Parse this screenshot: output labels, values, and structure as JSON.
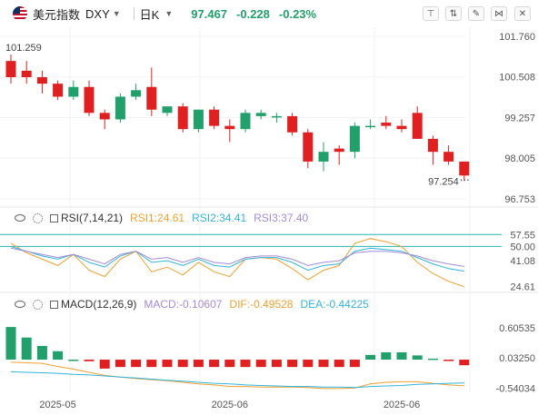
{
  "header": {
    "name": "美元指数",
    "symbol": "DXY",
    "timeframe": "日K",
    "price": "97.467",
    "change": "-0.228",
    "change_pct": "-0.23%",
    "tools": [
      "pin-icon",
      "indicator-icon",
      "draw-icon",
      "compare-icon",
      "expand-icon",
      "close-icon"
    ]
  },
  "colors": {
    "up": "#22a06b",
    "down": "#e02020",
    "rsi1": "#f0a030",
    "rsi2": "#32b4dc",
    "rsi3": "#a38bd8",
    "ref": "#26b5b5"
  },
  "rsi_legend": {
    "name": "RSI(7,14,21)",
    "rsi1": "RSI1:24.61",
    "rsi2": "RSI2:34.41",
    "rsi3": "RSI3:37.40"
  },
  "macd_legend": {
    "name": "MACD(12,26,9)",
    "macd": "MACD:-0.10607",
    "dif": "DIF:-0.49528",
    "dea": "DEA:-0.44225"
  },
  "chart_data": {
    "type": "candlestick",
    "y_ticks": [
      "101.760",
      "100.508",
      "99.257",
      "98.005",
      "96.753"
    ],
    "y_tick_values": [
      101.76,
      100.508,
      99.257,
      98.005,
      96.753
    ],
    "ylim": [
      96.75,
      101.76
    ],
    "x_labels": [
      "2025-05",
      "2025-06",
      "2025-06"
    ],
    "x_label_index": [
      3,
      14,
      25
    ],
    "high_label": "101.259",
    "high_index": 0,
    "low_label": "97.254",
    "low_index": 29,
    "ohlc": [
      [
        101.0,
        101.2,
        100.3,
        100.5
      ],
      [
        100.7,
        101.0,
        100.3,
        100.5
      ],
      [
        100.5,
        100.7,
        100.0,
        100.3
      ],
      [
        100.3,
        100.4,
        99.8,
        99.9
      ],
      [
        99.9,
        100.4,
        99.8,
        100.2
      ],
      [
        100.2,
        100.4,
        99.3,
        99.4
      ],
      [
        99.4,
        99.5,
        98.9,
        99.2
      ],
      [
        99.2,
        100.0,
        99.1,
        99.9
      ],
      [
        99.9,
        100.3,
        99.8,
        100.1
      ],
      [
        100.2,
        100.8,
        99.3,
        99.5
      ],
      [
        99.4,
        99.6,
        99.3,
        99.6
      ],
      [
        99.6,
        99.7,
        98.8,
        98.9
      ],
      [
        98.9,
        99.5,
        98.8,
        99.5
      ],
      [
        99.5,
        99.6,
        98.9,
        99.0
      ],
      [
        99.0,
        99.2,
        98.5,
        98.9
      ],
      [
        98.9,
        99.5,
        98.8,
        99.4
      ],
      [
        99.3,
        99.5,
        99.2,
        99.4
      ],
      [
        99.3,
        99.4,
        99.1,
        99.3
      ],
      [
        99.3,
        99.4,
        98.7,
        98.8
      ],
      [
        98.8,
        98.9,
        97.7,
        97.9
      ],
      [
        97.9,
        98.5,
        97.6,
        98.2
      ],
      [
        98.3,
        98.4,
        97.8,
        98.2
      ],
      [
        98.2,
        99.1,
        98.0,
        99.0
      ],
      [
        99.0,
        99.2,
        98.9,
        99.0
      ],
      [
        99.1,
        99.3,
        98.9,
        99.0
      ],
      [
        99.0,
        99.2,
        98.8,
        98.9
      ],
      [
        99.4,
        99.6,
        98.6,
        98.6
      ],
      [
        98.6,
        98.7,
        97.8,
        98.2
      ],
      [
        98.2,
        98.4,
        97.8,
        97.9
      ],
      [
        97.9,
        97.9,
        97.3,
        97.47
      ]
    ],
    "rsi": {
      "ref_lines": [
        57.55,
        50.0
      ],
      "y_ticks": [
        "57.55",
        "50.00",
        "41.08",
        "24.61"
      ],
      "y_tick_values": [
        57.55,
        50.0,
        41.08,
        24.61
      ],
      "ylim": [
        21,
        60
      ],
      "series": [
        {
          "name": "RSI1",
          "values": [
            52,
            46,
            42,
            38,
            45,
            35,
            31,
            42,
            47,
            34,
            37,
            32,
            40,
            34,
            31,
            42,
            43,
            42,
            36,
            29,
            35,
            38,
            52,
            55,
            53,
            50,
            40,
            33,
            28,
            24.61
          ]
        },
        {
          "name": "RSI2",
          "values": [
            50,
            47,
            44,
            42,
            45,
            40,
            37,
            44,
            47,
            40,
            41,
            38,
            42,
            38,
            37,
            42,
            43,
            43,
            40,
            35,
            38,
            39,
            47,
            49,
            48,
            47,
            43,
            39,
            36,
            34.41
          ]
        },
        {
          "name": "RSI3",
          "values": [
            49,
            47,
            45,
            43,
            45,
            42,
            39,
            45,
            47,
            42,
            43,
            40,
            43,
            40,
            39,
            43,
            44,
            44,
            42,
            38,
            40,
            41,
            46,
            47,
            47,
            46,
            44,
            41,
            39,
            37.4
          ]
        }
      ]
    },
    "macd": {
      "y_ticks": [
        "0.60535",
        "0.03250",
        "-0.54034"
      ],
      "y_tick_values": [
        0.60535,
        0.0325,
        -0.54034
      ],
      "ylim": [
        -0.62,
        0.88
      ],
      "hist": [
        0.62,
        0.42,
        0.26,
        0.16,
        0.0,
        -0.03,
        -0.17,
        -0.14,
        -0.14,
        -0.14,
        -0.14,
        -0.14,
        -0.14,
        -0.14,
        -0.14,
        -0.14,
        -0.14,
        -0.14,
        -0.14,
        -0.14,
        -0.14,
        -0.14,
        -0.14,
        0.09,
        0.14,
        0.14,
        0.08,
        0.02,
        -0.02,
        -0.10607
      ],
      "dif": [
        -0.05,
        -0.06,
        -0.07,
        -0.13,
        -0.18,
        -0.24,
        -0.3,
        -0.33,
        -0.36,
        -0.38,
        -0.4,
        -0.43,
        -0.46,
        -0.48,
        -0.51,
        -0.51,
        -0.52,
        -0.52,
        -0.52,
        -0.53,
        -0.55,
        -0.55,
        -0.54,
        -0.46,
        -0.43,
        -0.42,
        -0.42,
        -0.45,
        -0.48,
        -0.49528
      ],
      "dea": [
        -0.23,
        -0.24,
        -0.25,
        -0.26,
        -0.28,
        -0.29,
        -0.31,
        -0.33,
        -0.35,
        -0.37,
        -0.39,
        -0.41,
        -0.43,
        -0.45,
        -0.46,
        -0.48,
        -0.49,
        -0.5,
        -0.51,
        -0.51,
        -0.52,
        -0.52,
        -0.53,
        -0.51,
        -0.5,
        -0.49,
        -0.47,
        -0.46,
        -0.45,
        -0.44225
      ]
    }
  }
}
